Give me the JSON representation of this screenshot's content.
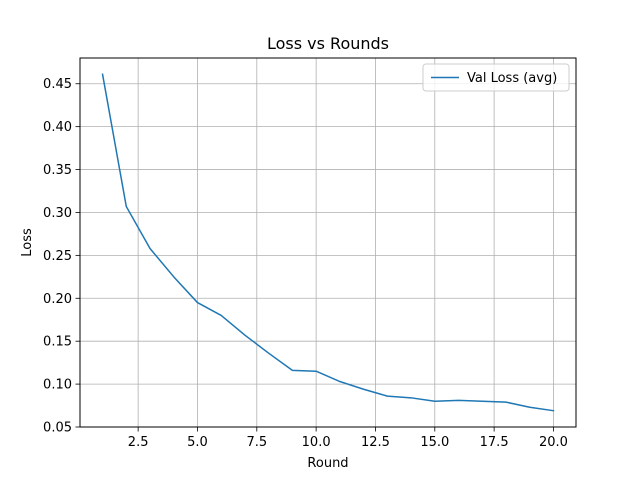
{
  "chart_data": {
    "type": "line",
    "title": "Loss vs Rounds",
    "xlabel": "Round",
    "ylabel": "Loss",
    "xlim": [
      0.05,
      20.95
    ],
    "ylim": [
      0.05,
      0.48
    ],
    "x_ticks": [
      2.5,
      5.0,
      7.5,
      10.0,
      12.5,
      15.0,
      17.5,
      20.0
    ],
    "x_tick_labels": [
      "2.5",
      "5.0",
      "7.5",
      "10.0",
      "12.5",
      "15.0",
      "17.5",
      "20.0"
    ],
    "y_ticks": [
      0.05,
      0.1,
      0.15,
      0.2,
      0.25,
      0.3,
      0.35,
      0.4,
      0.45
    ],
    "y_tick_labels": [
      "0.05",
      "0.10",
      "0.15",
      "0.20",
      "0.25",
      "0.30",
      "0.35",
      "0.40",
      "0.45"
    ],
    "grid": true,
    "legend_position": "top-right",
    "series": [
      {
        "name": "Val Loss (avg)",
        "color": "#1f77b4",
        "x": [
          1,
          2,
          3,
          4,
          5,
          6,
          7,
          8,
          9,
          10,
          11,
          12,
          13,
          14,
          15,
          16,
          17,
          18,
          19,
          20
        ],
        "y": [
          0.461,
          0.307,
          0.258,
          0.225,
          0.195,
          0.18,
          0.157,
          0.136,
          0.116,
          0.115,
          0.103,
          0.094,
          0.086,
          0.084,
          0.08,
          0.081,
          0.08,
          0.079,
          0.073,
          0.069
        ]
      }
    ]
  }
}
